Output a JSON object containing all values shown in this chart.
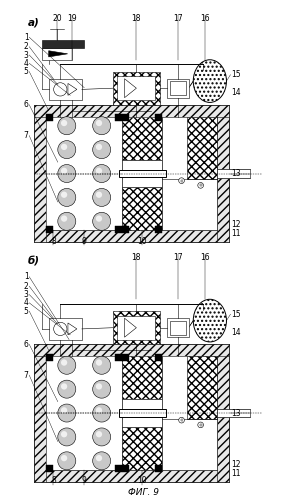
{
  "title": "ФИГ. 9",
  "label_a": "а)",
  "label_b": "б)",
  "bg": "#ffffff",
  "lc": "#000000",
  "fs": 5.5,
  "fs_title": 6.5,
  "fs_variant": 7.5
}
